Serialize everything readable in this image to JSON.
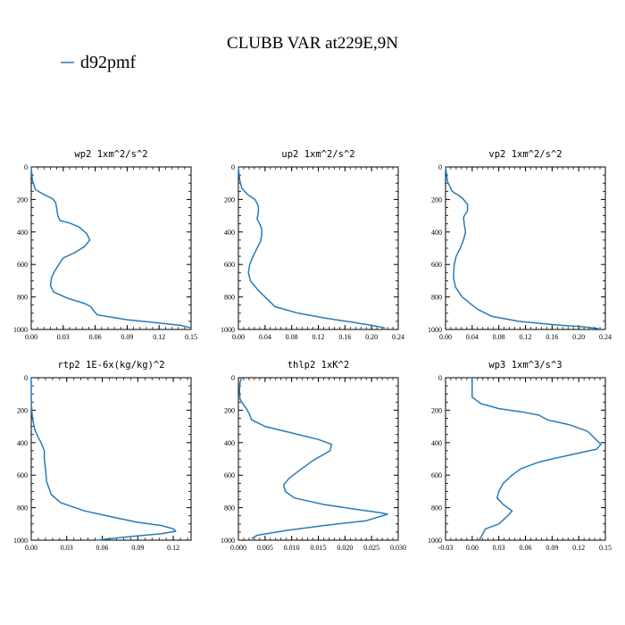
{
  "title": "CLUBB VAR at229E,9N",
  "legend": [
    {
      "label": "d92pmf",
      "color": "#2a7ab5"
    }
  ],
  "chart_data": [
    {
      "type": "line",
      "title": "wp2  1xm^2/s^2",
      "xlim": [
        0,
        0.15
      ],
      "ylim": [
        1000,
        0
      ],
      "xticks": [
        "0.00",
        "0.03",
        "0.06",
        "0.09",
        "0.12",
        "0.15"
      ],
      "yticks": [
        "0",
        "200",
        "400",
        "600",
        "800",
        "1000"
      ],
      "series": [
        {
          "name": "d92pmf",
          "x": [
            0.0,
            0.001,
            0.004,
            0.012,
            0.02,
            0.023,
            0.024,
            0.025,
            0.027,
            0.036,
            0.045,
            0.052,
            0.055,
            0.05,
            0.04,
            0.03,
            0.026,
            0.022,
            0.019,
            0.018,
            0.021,
            0.035,
            0.05,
            0.056,
            0.058,
            0.062,
            0.09,
            0.12,
            0.14,
            0.15
          ],
          "y": [
            0,
            80,
            140,
            170,
            195,
            220,
            260,
            300,
            330,
            345,
            370,
            410,
            450,
            490,
            530,
            560,
            600,
            640,
            680,
            730,
            770,
            810,
            840,
            860,
            880,
            910,
            940,
            960,
            975,
            990
          ]
        }
      ]
    },
    {
      "type": "line",
      "title": "up2  1xm^2/s^2",
      "xlim": [
        0,
        0.24
      ],
      "ylim": [
        1000,
        0
      ],
      "xticks": [
        "0.00",
        "0.04",
        "0.08",
        "0.12",
        "0.16",
        "0.20",
        "0.24"
      ],
      "yticks": [
        "0",
        "200",
        "400",
        "600",
        "800",
        "1000"
      ],
      "series": [
        {
          "name": "d92pmf",
          "x": [
            0.0,
            0.002,
            0.005,
            0.014,
            0.025,
            0.03,
            0.03,
            0.028,
            0.032,
            0.035,
            0.035,
            0.033,
            0.028,
            0.022,
            0.017,
            0.015,
            0.018,
            0.03,
            0.045,
            0.055,
            0.09,
            0.13,
            0.17,
            0.2,
            0.22
          ],
          "y": [
            0,
            80,
            130,
            170,
            200,
            240,
            280,
            320,
            350,
            380,
            420,
            460,
            500,
            550,
            600,
            650,
            700,
            760,
            820,
            860,
            900,
            930,
            955,
            975,
            990
          ]
        }
      ]
    },
    {
      "type": "line",
      "title": "vp2  1xm^2/s^2",
      "xlim": [
        0,
        0.24
      ],
      "ylim": [
        1000,
        0
      ],
      "xticks": [
        "0.00",
        "0.04",
        "0.08",
        "0.12",
        "0.16",
        "0.20",
        "0.24"
      ],
      "yticks": [
        "0",
        "200",
        "400",
        "600",
        "800",
        "1000"
      ],
      "series": [
        {
          "name": "d92pmf",
          "x": [
            0.0,
            0.003,
            0.01,
            0.025,
            0.033,
            0.033,
            0.027,
            0.028,
            0.03,
            0.027,
            0.022,
            0.016,
            0.013,
            0.012,
            0.015,
            0.025,
            0.04,
            0.05,
            0.07,
            0.11,
            0.16,
            0.21,
            0.23
          ],
          "y": [
            0,
            90,
            150,
            190,
            230,
            270,
            310,
            350,
            400,
            450,
            500,
            550,
            600,
            680,
            740,
            800,
            850,
            880,
            920,
            950,
            970,
            985,
            995
          ]
        }
      ]
    },
    {
      "type": "line",
      "title": "rtp2  1E-6x(kg/kg)^2",
      "xlim": [
        0,
        0.135
      ],
      "ylim": [
        1000,
        0
      ],
      "xticks": [
        "0.00",
        "0.03",
        "0.06",
        "0.09",
        "0.12"
      ],
      "yticks": [
        "0",
        "200",
        "400",
        "600",
        "800",
        "1000"
      ],
      "series": [
        {
          "name": "d92pmf",
          "x": [
            0.0,
            0.0,
            0.001,
            0.003,
            0.006,
            0.009,
            0.011,
            0.011,
            0.012,
            0.013,
            0.017,
            0.025,
            0.045,
            0.07,
            0.09,
            0.11,
            0.12,
            0.122,
            0.11,
            0.08,
            0.055
          ],
          "y": [
            0,
            150,
            250,
            320,
            370,
            410,
            450,
            500,
            560,
            640,
            720,
            770,
            820,
            860,
            890,
            910,
            930,
            945,
            960,
            980,
            1000
          ]
        }
      ]
    },
    {
      "type": "line",
      "title": "thlp2  1xK^2",
      "xlim": [
        0,
        0.03
      ],
      "ylim": [
        1000,
        0
      ],
      "xticks": [
        "0.000",
        "0.005",
        "0.010",
        "0.015",
        "0.020",
        "0.025",
        "0.030"
      ],
      "yticks": [
        "0",
        "200",
        "400",
        "600",
        "800",
        "1000"
      ],
      "series": [
        {
          "name": "d92pmf",
          "x": [
            0.0006,
            0.0003,
            0.0002,
            0.0003,
            0.0008,
            0.0015,
            0.002,
            0.0025,
            0.005,
            0.01,
            0.015,
            0.0175,
            0.0172,
            0.014,
            0.0115,
            0.0095,
            0.0085,
            0.0088,
            0.0105,
            0.016,
            0.022,
            0.0265,
            0.028,
            0.024,
            0.016,
            0.009,
            0.0035,
            0.0025
          ],
          "y": [
            0,
            30,
            80,
            130,
            160,
            190,
            220,
            260,
            300,
            340,
            380,
            410,
            450,
            510,
            570,
            620,
            660,
            700,
            740,
            780,
            810,
            830,
            840,
            880,
            910,
            940,
            970,
            990
          ]
        }
      ]
    },
    {
      "type": "line",
      "title": "wp3  1xm^3/s^3",
      "xlim": [
        -0.03,
        0.15
      ],
      "ylim": [
        1000,
        0
      ],
      "xticks": [
        "-0.03",
        "0.00",
        "0.03",
        "0.06",
        "0.09",
        "0.12",
        "0.15"
      ],
      "yticks": [
        "0",
        "200",
        "400",
        "600",
        "800",
        "1000"
      ],
      "series": [
        {
          "name": "d92pmf",
          "x": [
            0.0,
            0.0,
            0.01,
            0.03,
            0.055,
            0.075,
            0.085,
            0.11,
            0.13,
            0.145,
            0.14,
            0.115,
            0.09,
            0.075,
            0.055,
            0.045,
            0.035,
            0.03,
            0.028,
            0.035,
            0.045,
            0.04,
            0.03,
            0.015,
            0.012,
            0.01,
            0.008
          ],
          "y": [
            0,
            120,
            160,
            190,
            210,
            230,
            260,
            290,
            330,
            410,
            440,
            470,
            500,
            520,
            560,
            600,
            650,
            700,
            740,
            780,
            820,
            850,
            900,
            930,
            960,
            980,
            1000
          ]
        }
      ]
    }
  ]
}
